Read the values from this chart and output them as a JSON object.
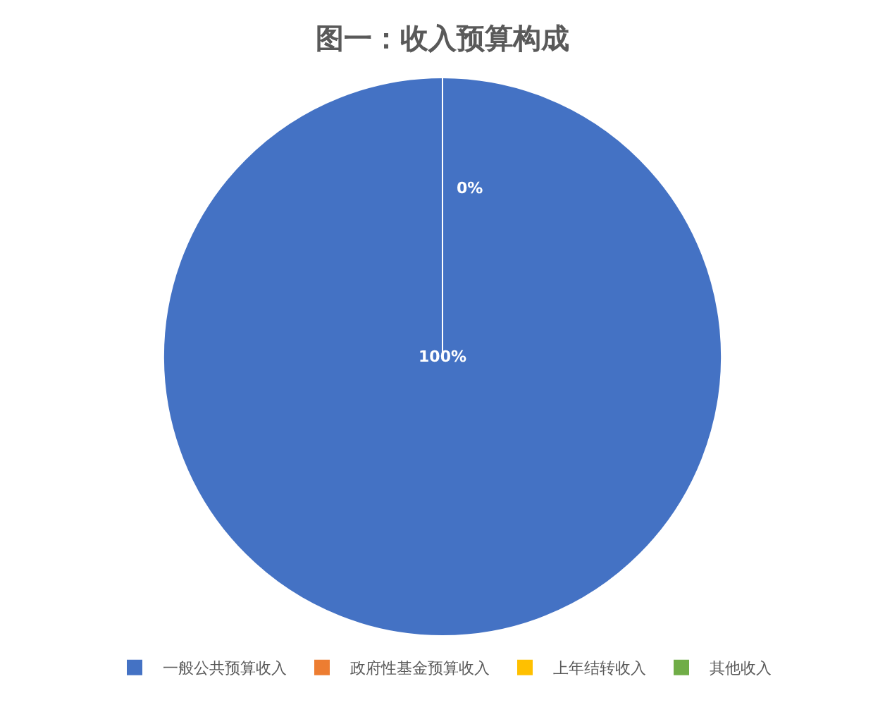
{
  "chart_data": {
    "type": "pie",
    "title": "图一：收入预算构成",
    "categories": [
      "一般公共预算收入",
      "政府性基金预算收入",
      "上年结转收入",
      "其他收入"
    ],
    "values": [
      100,
      0,
      0,
      0
    ],
    "colors": [
      "#4472c4",
      "#ed7d31",
      "#ffc000",
      "#70ad47"
    ],
    "value_labels": [
      "100%",
      "0%",
      null,
      null
    ],
    "legend": "bottom"
  }
}
